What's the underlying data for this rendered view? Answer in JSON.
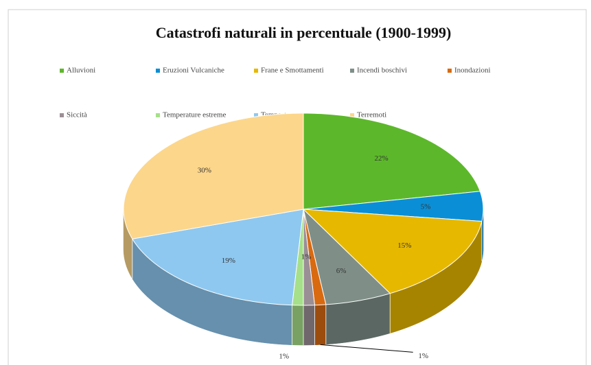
{
  "chart_data": {
    "type": "pie3d",
    "title": "Catastrofi naturali in percentuale (1900-1999)",
    "categories": [
      "Alluvioni",
      "Eruzioni Vulcaniche",
      "Frane e Smottamenti",
      "Incendi boschivi",
      "Inondazioni",
      "Siccità",
      "Temperature estreme",
      "Tempeste",
      "Terremoti"
    ],
    "values": [
      22,
      5,
      15,
      6,
      1,
      1,
      1,
      19,
      30
    ],
    "value_labels": [
      "22%",
      "5%",
      "15%",
      "6%",
      "1%",
      "1%",
      "1%",
      "19%",
      "30%"
    ],
    "colors": [
      "#5cb82a",
      "#0a8fd6",
      "#e6b800",
      "#7f8f88",
      "#d96a10",
      "#9b8f96",
      "#a6e08a",
      "#8ec8f0",
      "#fcd68a"
    ],
    "legend": "top"
  }
}
